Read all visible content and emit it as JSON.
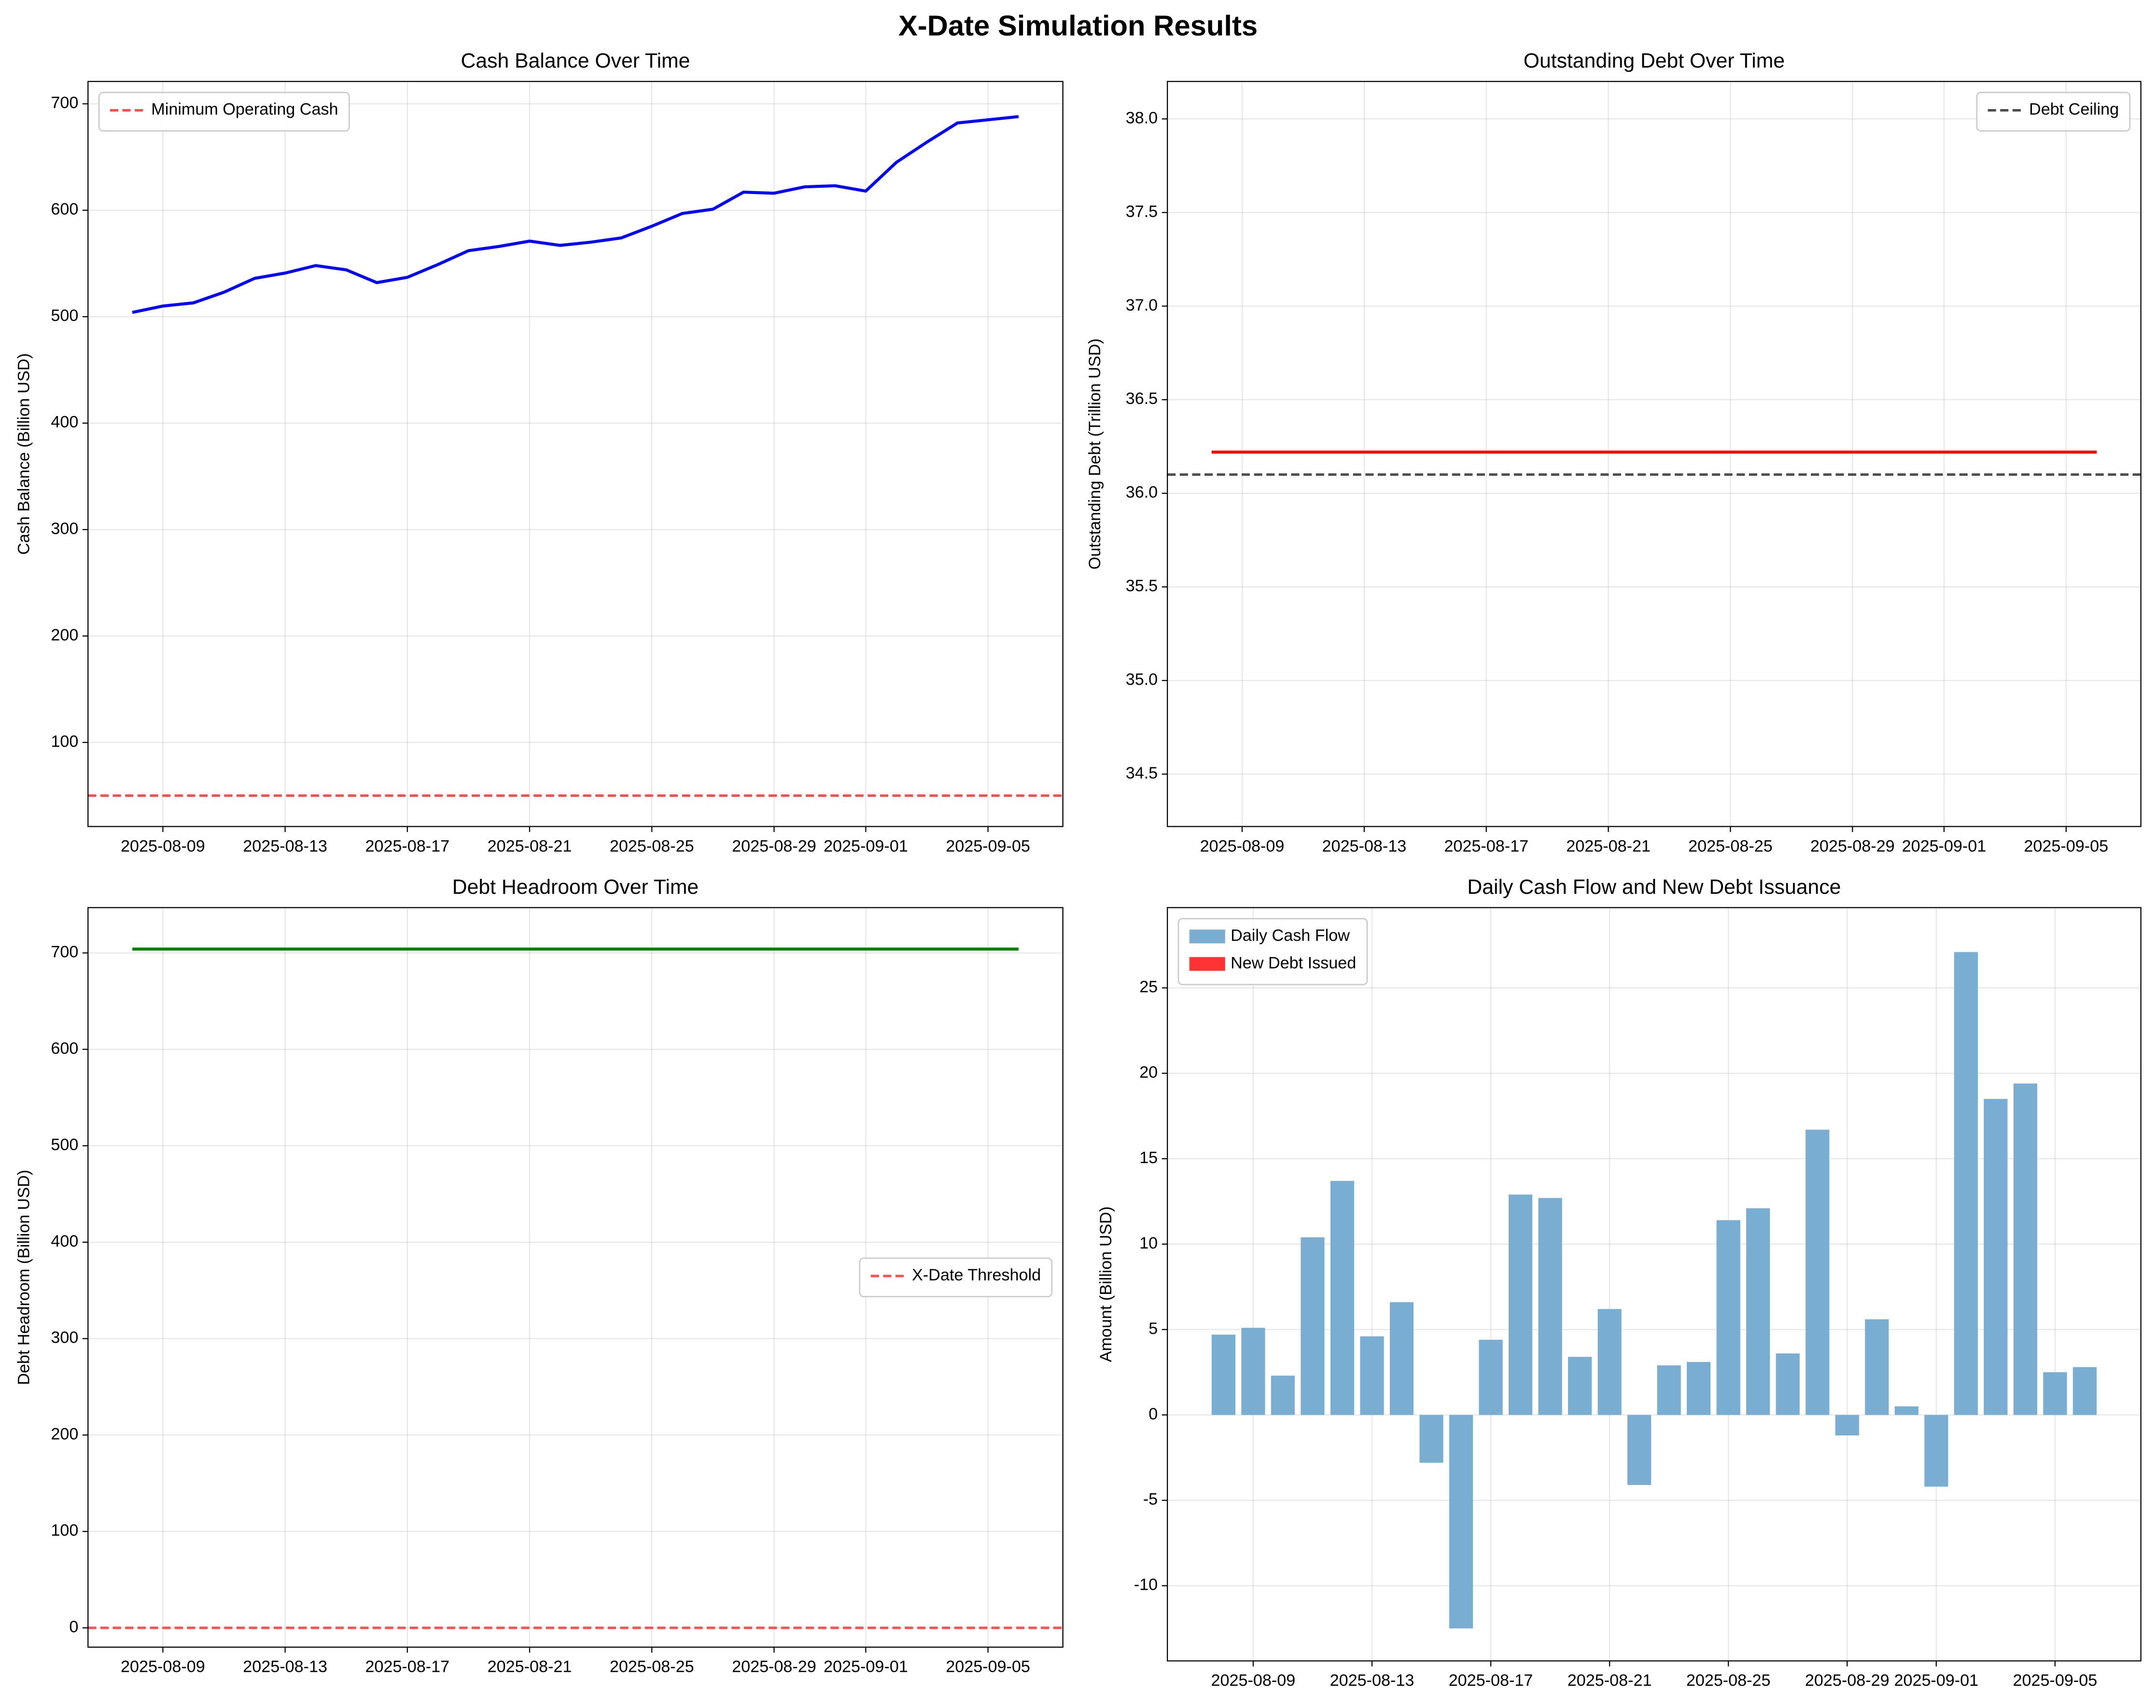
{
  "title": "X-Date Simulation Results",
  "chart_data": [
    {
      "type": "line",
      "title": "Cash Balance Over Time",
      "ylabel": "Cash Balance (Billion USD)",
      "x": [
        "2025-08-08",
        "2025-08-09",
        "2025-08-10",
        "2025-08-11",
        "2025-08-12",
        "2025-08-13",
        "2025-08-14",
        "2025-08-15",
        "2025-08-16",
        "2025-08-17",
        "2025-08-18",
        "2025-08-19",
        "2025-08-20",
        "2025-08-21",
        "2025-08-22",
        "2025-08-23",
        "2025-08-24",
        "2025-08-25",
        "2025-08-26",
        "2025-08-27",
        "2025-08-28",
        "2025-08-29",
        "2025-08-30",
        "2025-08-31",
        "2025-09-01",
        "2025-09-02",
        "2025-09-03",
        "2025-09-04",
        "2025-09-05",
        "2025-09-06"
      ],
      "series": [
        {
          "color": "#0000ff",
          "values": [
            504,
            510,
            513,
            523,
            536,
            541,
            548,
            544,
            532,
            537,
            549,
            562,
            566,
            571,
            567,
            570,
            574,
            585,
            597,
            601,
            617,
            616,
            622,
            623,
            618,
            645,
            664,
            682,
            685,
            688
          ]
        }
      ],
      "hlines": [
        {
          "name": "Minimum Operating Cash",
          "value": 50,
          "color": "#ff4d4d"
        }
      ],
      "legend": "upper left",
      "xticks": [
        "2025-08-09",
        "2025-08-13",
        "2025-08-17",
        "2025-08-21",
        "2025-08-25",
        "2025-08-29",
        "2025-09-01",
        "2025-09-05"
      ],
      "ylim": [
        21,
        721
      ],
      "yticks": [
        100,
        200,
        300,
        400,
        500,
        600,
        700
      ],
      "grid": true
    },
    {
      "type": "line",
      "title": "Outstanding Debt Over Time",
      "ylabel": "Outstanding Debt (Trillion USD)",
      "x": [
        "2025-08-08",
        "2025-08-09",
        "2025-08-10",
        "2025-08-11",
        "2025-08-12",
        "2025-08-13",
        "2025-08-14",
        "2025-08-15",
        "2025-08-16",
        "2025-08-17",
        "2025-08-18",
        "2025-08-19",
        "2025-08-20",
        "2025-08-21",
        "2025-08-22",
        "2025-08-23",
        "2025-08-24",
        "2025-08-25",
        "2025-08-26",
        "2025-08-27",
        "2025-08-28",
        "2025-08-29",
        "2025-08-30",
        "2025-08-31",
        "2025-09-01",
        "2025-09-02",
        "2025-09-03",
        "2025-09-04",
        "2025-09-05",
        "2025-09-06"
      ],
      "series": [
        {
          "color": "#ff0000",
          "values": [
            36.22,
            36.22,
            36.22,
            36.22,
            36.22,
            36.22,
            36.22,
            36.22,
            36.22,
            36.22,
            36.22,
            36.22,
            36.22,
            36.22,
            36.22,
            36.22,
            36.22,
            36.22,
            36.22,
            36.22,
            36.22,
            36.22,
            36.22,
            36.22,
            36.22,
            36.22,
            36.22,
            36.22,
            36.22,
            36.22
          ]
        }
      ],
      "hlines": [
        {
          "name": "Debt Ceiling",
          "value": 36.1,
          "color": "#4d4d4d"
        }
      ],
      "legend": "upper right",
      "xticks": [
        "2025-08-09",
        "2025-08-13",
        "2025-08-17",
        "2025-08-21",
        "2025-08-25",
        "2025-08-29",
        "2025-09-01",
        "2025-09-05"
      ],
      "ylim": [
        34.22,
        38.2
      ],
      "yticks": [
        34.5,
        {
          "value": 35,
          "label": "35.0"
        },
        35.5,
        {
          "value": 36,
          "label": "36.0"
        },
        36.5,
        {
          "value": 37,
          "label": "37.0"
        },
        37.5,
        {
          "value": 38,
          "label": "38.0"
        }
      ],
      "grid": true
    },
    {
      "type": "line",
      "title": "Debt Headroom Over Time",
      "ylabel": "Debt Headroom (Billion USD)",
      "x": [
        "2025-08-08",
        "2025-08-09",
        "2025-08-10",
        "2025-08-11",
        "2025-08-12",
        "2025-08-13",
        "2025-08-14",
        "2025-08-15",
        "2025-08-16",
        "2025-08-17",
        "2025-08-18",
        "2025-08-19",
        "2025-08-20",
        "2025-08-21",
        "2025-08-22",
        "2025-08-23",
        "2025-08-24",
        "2025-08-25",
        "2025-08-26",
        "2025-08-27",
        "2025-08-28",
        "2025-08-29",
        "2025-08-30",
        "2025-08-31",
        "2025-09-01",
        "2025-09-02",
        "2025-09-03",
        "2025-09-04",
        "2025-09-05",
        "2025-09-06"
      ],
      "series": [
        {
          "color": "#008000",
          "values": [
            704,
            704,
            704,
            704,
            704,
            704,
            704,
            704,
            704,
            704,
            704,
            704,
            704,
            704,
            704,
            704,
            704,
            704,
            704,
            704,
            704,
            704,
            704,
            704,
            704,
            704,
            704,
            704,
            704,
            704
          ]
        }
      ],
      "hlines": [
        {
          "name": "X-Date Threshold",
          "value": 0,
          "color": "#ff4d4d"
        }
      ],
      "legend": "center right",
      "xticks": [
        "2025-08-09",
        "2025-08-13",
        "2025-08-17",
        "2025-08-21",
        "2025-08-25",
        "2025-08-29",
        "2025-09-01",
        "2025-09-05"
      ],
      "ylim": [
        -20,
        747
      ],
      "yticks": [
        0,
        100,
        200,
        300,
        400,
        500,
        600,
        700
      ],
      "grid": true
    },
    {
      "type": "bar",
      "title": "Daily Cash Flow and New Debt Issuance",
      "ylabel": "Amount (Billion USD)",
      "x": [
        "2025-08-08",
        "2025-08-09",
        "2025-08-10",
        "2025-08-11",
        "2025-08-12",
        "2025-08-13",
        "2025-08-14",
        "2025-08-15",
        "2025-08-16",
        "2025-08-17",
        "2025-08-18",
        "2025-08-19",
        "2025-08-20",
        "2025-08-21",
        "2025-08-22",
        "2025-08-23",
        "2025-08-24",
        "2025-08-25",
        "2025-08-26",
        "2025-08-27",
        "2025-08-28",
        "2025-08-29",
        "2025-08-30",
        "2025-08-31",
        "2025-09-01",
        "2025-09-02",
        "2025-09-03",
        "2025-09-04",
        "2025-09-05",
        "2025-09-06"
      ],
      "series": [
        {
          "name": "Daily Cash Flow",
          "color": "#79add2",
          "values": [
            4.7,
            5.1,
            2.3,
            10.4,
            13.7,
            4.6,
            6.6,
            -2.8,
            -12.5,
            4.4,
            12.9,
            12.7,
            3.4,
            6.2,
            -4.1,
            2.9,
            3.1,
            11.4,
            12.1,
            3.6,
            16.7,
            -1.2,
            5.6,
            0.5,
            -4.2,
            27.1,
            18.5,
            19.4,
            2.5,
            2.8
          ]
        },
        {
          "name": "New Debt Issued",
          "color": "#ff3333",
          "values": [
            0,
            0,
            0,
            0,
            0,
            0,
            0,
            0,
            0,
            0,
            0,
            0,
            0,
            0,
            0,
            0,
            0,
            0,
            0,
            0,
            0,
            0,
            0,
            0,
            0,
            0,
            0,
            0,
            0,
            0
          ]
        }
      ],
      "legend": "upper left",
      "xticks": [
        "2025-08-09",
        "2025-08-13",
        "2025-08-17",
        "2025-08-21",
        "2025-08-25",
        "2025-08-29",
        "2025-09-01",
        "2025-09-05"
      ],
      "ylim": [
        -14.4,
        29.7
      ],
      "yticks": [
        -10,
        -5,
        0,
        5,
        10,
        15,
        20,
        25
      ],
      "grid": true
    }
  ]
}
